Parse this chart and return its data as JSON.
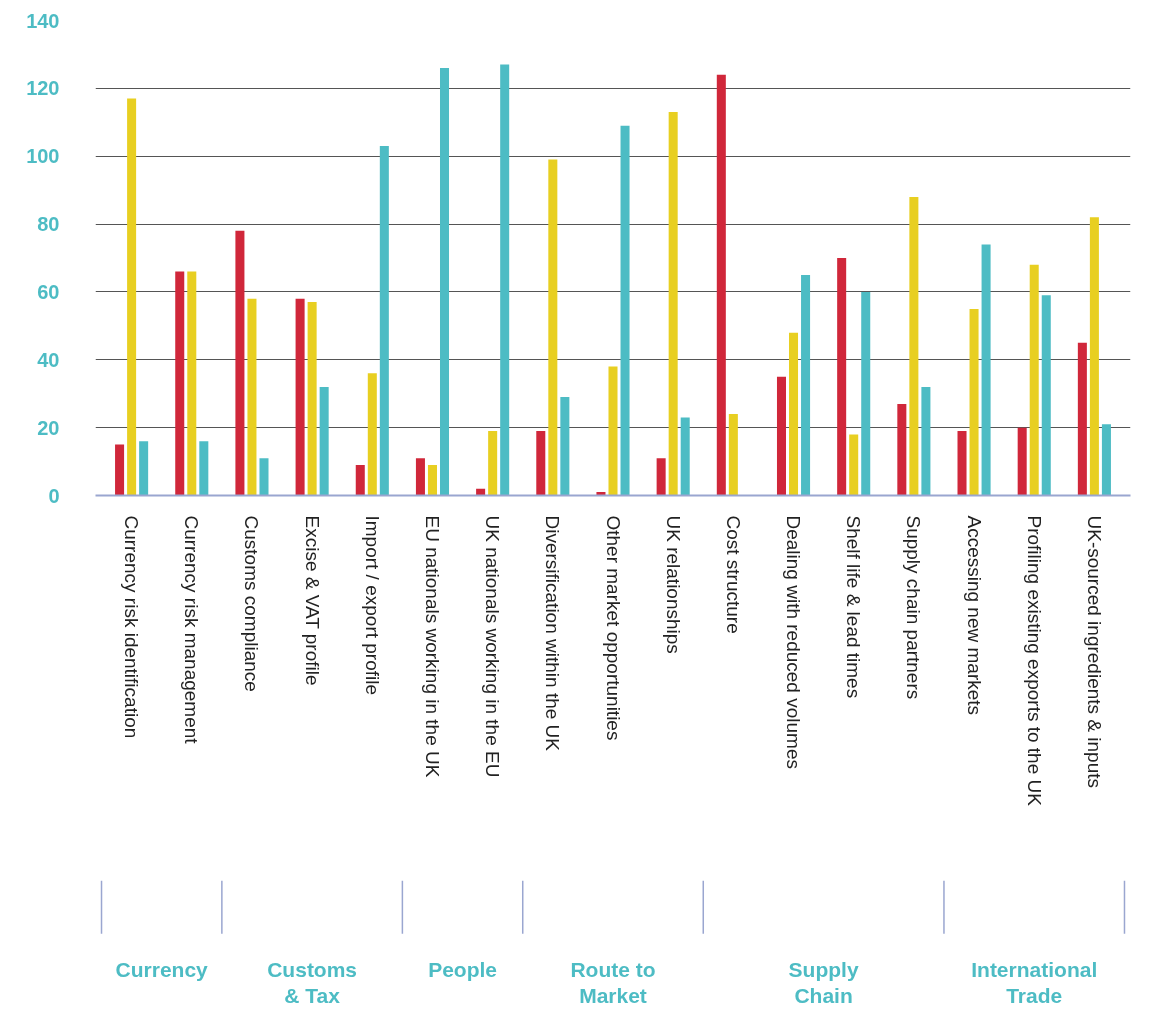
{
  "chart_data": {
    "type": "bar",
    "categories": [
      "Currency risk identification",
      "Currency risk management",
      "Customs compliance",
      "Excise & VAT profile",
      "Import / export profile",
      "EU nationals working in the UK",
      "UK nationals working in the EU",
      "Diversification within the UK",
      "Other market opportunities",
      "UK relationships",
      "Cost structure",
      "Dealing with reduced volumes",
      "Shelf life & lead times",
      "Supply chain partners",
      "Accessing new markets",
      "Profiling existing exports to the UK",
      "UK-sourced ingredients & inputs"
    ],
    "series": [
      {
        "color": "#d0273a",
        "values": [
          15,
          66,
          78,
          58,
          9,
          11,
          2,
          19,
          1,
          11,
          124,
          35,
          70,
          27,
          19,
          20,
          45
        ]
      },
      {
        "color": "#e8cf21",
        "values": [
          117,
          66,
          58,
          57,
          36,
          9,
          19,
          99,
          38,
          113,
          24,
          48,
          18,
          88,
          55,
          68,
          82
        ]
      },
      {
        "color": "#4dbcc4",
        "values": [
          16,
          16,
          11,
          32,
          103,
          126,
          127,
          29,
          109,
          23,
          null,
          65,
          60,
          32,
          74,
          59,
          21
        ]
      }
    ],
    "ylim": [
      0,
      140
    ],
    "yticks": [
      0,
      20,
      40,
      60,
      80,
      100,
      120,
      140
    ],
    "grid": "y",
    "annotations": [
      "Currency",
      "Customs & Tax",
      "People",
      "Route to Market",
      "Supply Chain",
      "International Trade"
    ]
  }
}
